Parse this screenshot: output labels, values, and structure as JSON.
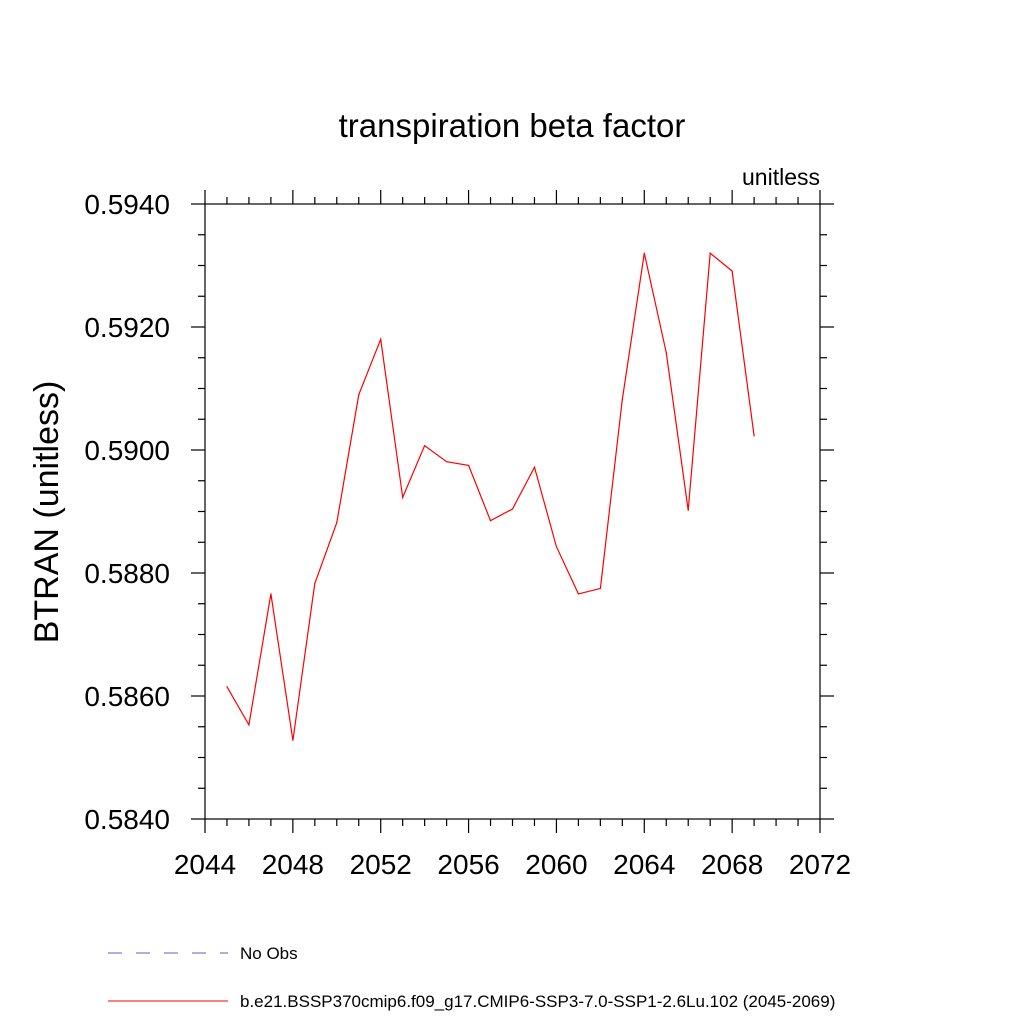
{
  "chart_data": {
    "type": "line",
    "title": "transpiration beta factor",
    "units_label": "unitless",
    "ylabel": "BTRAN  (unitless)",
    "xlabel": "",
    "xlim": [
      2044,
      2072
    ],
    "ylim": [
      0.584,
      0.594
    ],
    "x_ticks": [
      2044,
      2048,
      2052,
      2056,
      2060,
      2064,
      2068,
      2072
    ],
    "x_tick_labels": [
      "2044",
      "2048",
      "2052",
      "2056",
      "2060",
      "2064",
      "2068",
      "2072"
    ],
    "y_ticks": [
      0.584,
      0.586,
      0.588,
      0.59,
      0.592,
      0.594
    ],
    "y_tick_labels": [
      "0.5840",
      "0.5860",
      "0.5880",
      "0.5900",
      "0.5920",
      "0.5940"
    ],
    "grid": false,
    "legend_position": "below",
    "series": [
      {
        "name": "b.e21.BSSP370cmip6.f09_g17.CMIP6-SSP3-7.0-SSP1-2.6Lu.102 (2045-2069)",
        "color": "#ff0000",
        "dash": "solid",
        "x": [
          2045,
          2046,
          2047,
          2048,
          2049,
          2050,
          2051,
          2052,
          2053,
          2054,
          2055,
          2056,
          2057,
          2058,
          2059,
          2060,
          2061,
          2062,
          2063,
          2064,
          2065,
          2066,
          2067,
          2068,
          2069
        ],
        "y": [
          0.58615,
          0.58553,
          0.58766,
          0.58528,
          0.58783,
          0.58882,
          0.5909,
          0.5918,
          0.58923,
          0.59007,
          0.58981,
          0.58975,
          0.58885,
          0.58904,
          0.58972,
          0.58843,
          0.58766,
          0.58775,
          0.59082,
          0.5932,
          0.59158,
          0.58902,
          0.5932,
          0.59291,
          0.59023
        ]
      }
    ],
    "legend": [
      {
        "label": "No Obs",
        "color": "#6a5acd",
        "dash": "dashed"
      },
      {
        "label": "b.e21.BSSP370cmip6.f09_g17.CMIP6-SSP3-7.0-SSP1-2.6Lu.102 (2045-2069)",
        "color": "#ff0000",
        "dash": "solid"
      }
    ]
  }
}
